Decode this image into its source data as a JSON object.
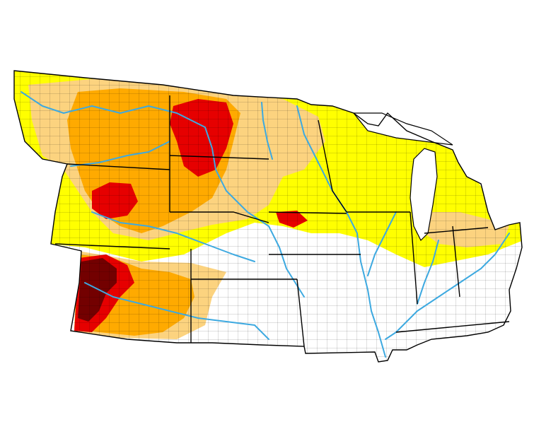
{
  "map": {
    "categories": [
      {
        "id": "none",
        "color": "#ffffff"
      },
      {
        "id": "D0",
        "color": "#ffff00"
      },
      {
        "id": "D1",
        "color": "#fcd37f"
      },
      {
        "id": "D2",
        "color": "#ffaa00"
      },
      {
        "id": "D3",
        "color": "#e60000"
      },
      {
        "id": "D4",
        "color": "#730000"
      }
    ],
    "outline_color": "#000000",
    "river_color": "#3da9e0"
  }
}
